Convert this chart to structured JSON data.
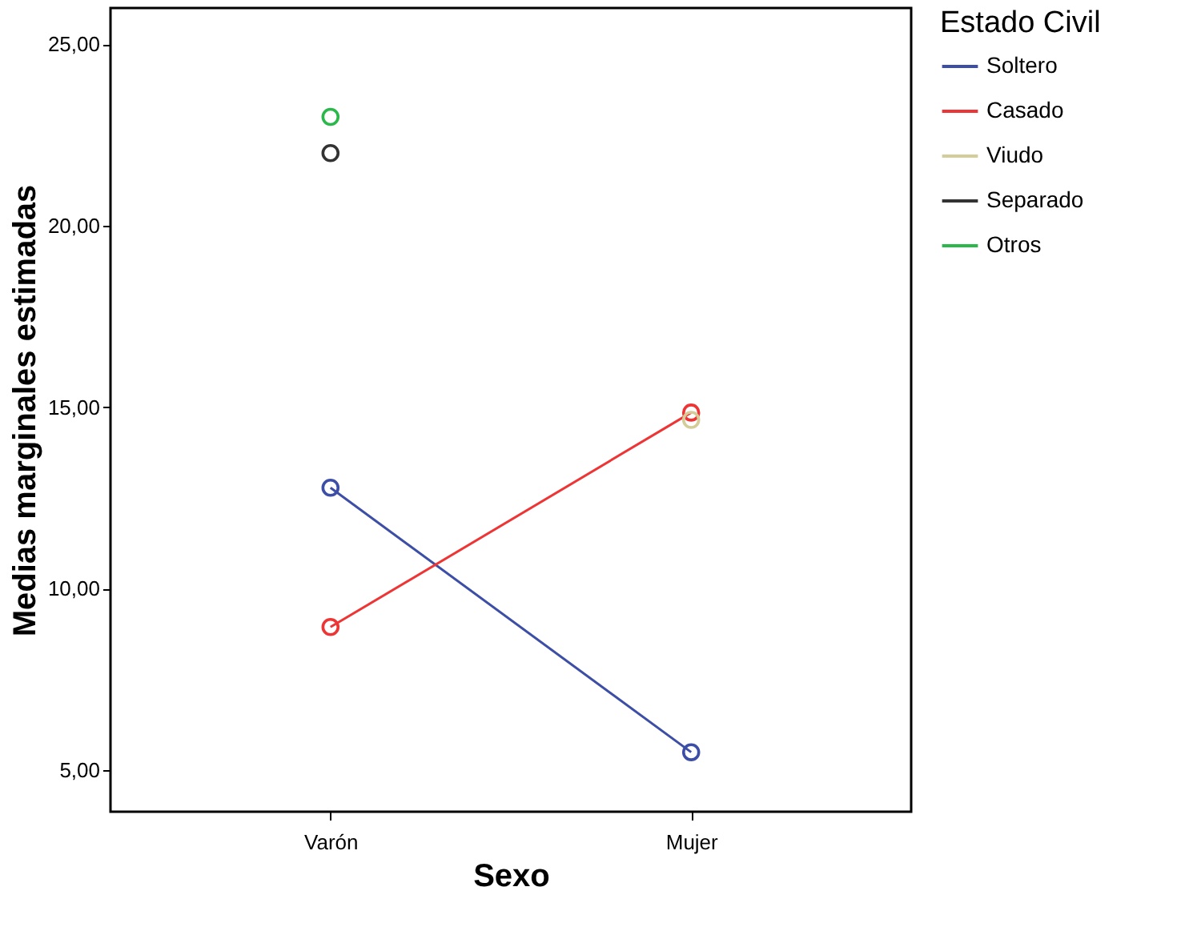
{
  "chart_data": {
    "type": "line",
    "xlabel": "Sexo",
    "ylabel": "Medias marginales estimadas",
    "legend_title": "Estado Civil",
    "categories": [
      "Varón",
      "Mujer"
    ],
    "series": [
      {
        "name": "Soltero",
        "color": "#3c4ea5",
        "values": [
          12.78,
          5.49
        ]
      },
      {
        "name": "Casado",
        "color": "#ee3535",
        "values": [
          8.94,
          14.85
        ]
      },
      {
        "name": "Viudo",
        "color": "#d4cc99",
        "values": [
          null,
          14.65
        ]
      },
      {
        "name": "Separado",
        "color": "#333333",
        "values": [
          22.0,
          null
        ]
      },
      {
        "name": "Otros",
        "color": "#2ab84a",
        "values": [
          23.0,
          null
        ]
      }
    ],
    "ylim": [
      3.85,
      26.0
    ],
    "yticks": [
      {
        "value": 5,
        "label": "5,00"
      },
      {
        "value": 10,
        "label": "10,00"
      },
      {
        "value": 15,
        "label": "15,00"
      },
      {
        "value": 20,
        "label": "20,00"
      },
      {
        "value": 25,
        "label": "25,00"
      }
    ],
    "marker": "circle",
    "line_style": "solid",
    "grid": false,
    "legend": "right"
  }
}
